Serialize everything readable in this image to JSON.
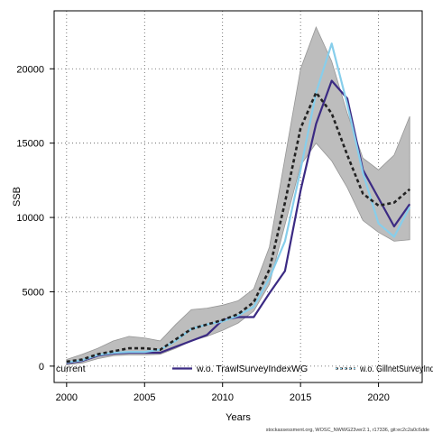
{
  "chart_data": {
    "type": "line",
    "xlabel": "Years",
    "ylabel": "SSB",
    "xlim": [
      1999.2,
      2022.8
    ],
    "ylim": [
      -1100,
      23900
    ],
    "x_ticks": [
      2000,
      2005,
      2010,
      2015,
      2020
    ],
    "y_ticks": [
      0,
      5000,
      10000,
      15000,
      20000
    ],
    "grid": true,
    "legend_position": "bottom",
    "x": [
      2000,
      2001,
      2002,
      2003,
      2004,
      2005,
      2006,
      2007,
      2008,
      2009,
      2010,
      2011,
      2012,
      2013,
      2014,
      2015,
      2016,
      2017,
      2018,
      2019,
      2020,
      2021,
      2022
    ],
    "confidence_band": {
      "lower": [
        100,
        200,
        500,
        700,
        750,
        750,
        800,
        1200,
        1700,
        2000,
        2400,
        2900,
        3700,
        5500,
        9500,
        13500,
        15000,
        13800,
        12000,
        9800,
        9000,
        8400,
        8500
      ],
      "upper": [
        450,
        800,
        1200,
        1700,
        2000,
        1900,
        1700,
        2800,
        3800,
        3900,
        4100,
        4400,
        5200,
        8000,
        14000,
        20000,
        22800,
        20500,
        17000,
        14000,
        13200,
        14200,
        16800
      ]
    },
    "series": [
      {
        "name": "current",
        "color": "#222222",
        "style": "dashed",
        "values": [
          300,
          450,
          800,
          1000,
          1200,
          1200,
          1100,
          1800,
          2500,
          2800,
          3100,
          3500,
          4300,
          6500,
          11000,
          16000,
          18400,
          17000,
          14200,
          11600,
          10800,
          11000,
          11900
        ]
      },
      {
        "name": "w.o. TrawlSurveyIndexWG",
        "color": "#3b2a83",
        "style": "solid",
        "values": [
          200,
          350,
          700,
          850,
          900,
          900,
          900,
          1300,
          1700,
          2100,
          3100,
          3300,
          3300,
          4900,
          6400,
          11800,
          16300,
          19200,
          18000,
          13200,
          11300,
          9400,
          10900
        ]
      },
      {
        "name": "w.o. GillnetSurveyIndex",
        "color": "#87ceeb",
        "style": "solid",
        "values": [
          250,
          400,
          750,
          900,
          950,
          950,
          1100,
          1700,
          2500,
          2800,
          3000,
          3400,
          4000,
          5900,
          8400,
          13200,
          18400,
          21700,
          17600,
          13000,
          9600,
          8700,
          10700
        ]
      }
    ],
    "legend": [
      "current",
      "w.o. TrawlSurveyIndexWG",
      "w.o. GillnetSurveyIndex"
    ],
    "credit": "stockassessment.org, WOSC_NWWG23ver2.1, r17336, git:ec2c2a0c6dde"
  }
}
